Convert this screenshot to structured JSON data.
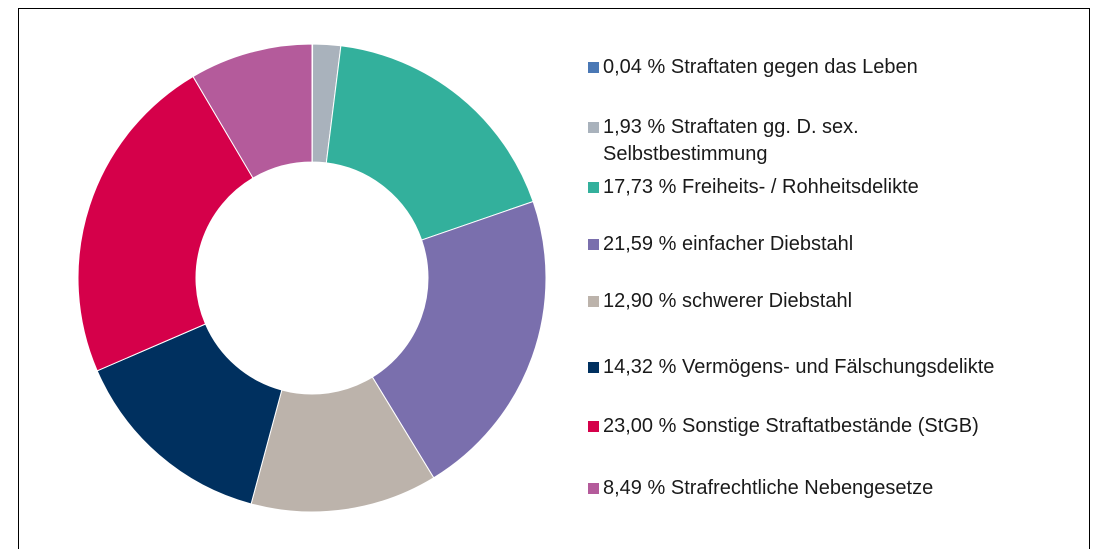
{
  "chart_data": {
    "type": "pie",
    "categories": [
      "Straftaten gegen das Leben",
      "Straftaten gg. D. sex. Selbstbestimmung",
      "Freiheits- / Rohheitsdelikte",
      "einfacher Diebstahl",
      "schwerer Diebstahl",
      "Vermögens- und Fälschungsdelikte",
      "Sonstige Straftatbestände (StGB)",
      "Strafrechtliche Nebengesetze"
    ],
    "values": [
      0.04,
      1.93,
      17.73,
      21.59,
      12.9,
      14.32,
      23.0,
      8.49
    ],
    "value_labels": [
      "0,04 %",
      "1,93 %",
      "17,73 %",
      "21,59 %",
      "12,90 %",
      "14,32 %",
      "23,00 %",
      "8,49 %"
    ],
    "colors": [
      "#4a78b5",
      "#a9b2bc",
      "#33b09c",
      "#7a6fad",
      "#bcb3ab",
      "#00305f",
      "#d5004a",
      "#b45b9b"
    ]
  }
}
